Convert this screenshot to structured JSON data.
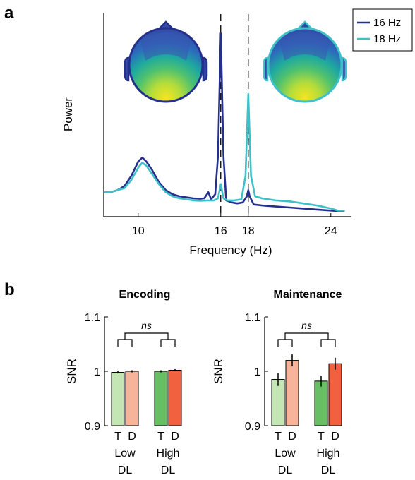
{
  "panel_a_label": "a",
  "panel_b_label": "b",
  "chart_data": [
    {
      "type": "line",
      "xlabel": "Frequency (Hz)",
      "ylabel": "Power",
      "x_ticks": [
        10,
        16,
        18,
        24
      ],
      "xlim": [
        7.5,
        25.5
      ],
      "ylim": [
        0,
        1
      ],
      "dashed_lines_x": [
        16,
        18
      ],
      "legend_position": "top-right",
      "series": [
        {
          "name": "16 Hz",
          "color": "#25308c",
          "points": [
            [
              7.5,
              0.12
            ],
            [
              8,
              0.12
            ],
            [
              8.5,
              0.13
            ],
            [
              9,
              0.15
            ],
            [
              9.5,
              0.2
            ],
            [
              10,
              0.27
            ],
            [
              10.3,
              0.29
            ],
            [
              10.6,
              0.27
            ],
            [
              11,
              0.23
            ],
            [
              11.5,
              0.17
            ],
            [
              12,
              0.13
            ],
            [
              12.5,
              0.11
            ],
            [
              13,
              0.1
            ],
            [
              13.5,
              0.095
            ],
            [
              14,
              0.09
            ],
            [
              14.5,
              0.088
            ],
            [
              14.8,
              0.09
            ],
            [
              15.1,
              0.12
            ],
            [
              15.3,
              0.085
            ],
            [
              15.6,
              0.11
            ],
            [
              15.8,
              0.3
            ],
            [
              16,
              0.9
            ],
            [
              16.2,
              0.3
            ],
            [
              16.4,
              0.08
            ],
            [
              16.8,
              0.07
            ],
            [
              17.2,
              0.065
            ],
            [
              17.6,
              0.07
            ],
            [
              17.9,
              0.1
            ],
            [
              18,
              0.13
            ],
            [
              18.1,
              0.1
            ],
            [
              18.4,
              0.06
            ],
            [
              19,
              0.055
            ],
            [
              20,
              0.05
            ],
            [
              21,
              0.045
            ],
            [
              22,
              0.04
            ],
            [
              23,
              0.035
            ],
            [
              24,
              0.03
            ],
            [
              24.5,
              0.028
            ],
            [
              25,
              0.028
            ]
          ]
        },
        {
          "name": "18 Hz",
          "color": "#3fbfc8",
          "points": [
            [
              7.5,
              0.12
            ],
            [
              8,
              0.12
            ],
            [
              8.5,
              0.13
            ],
            [
              9,
              0.14
            ],
            [
              9.5,
              0.18
            ],
            [
              10,
              0.24
            ],
            [
              10.3,
              0.265
            ],
            [
              10.6,
              0.25
            ],
            [
              11,
              0.21
            ],
            [
              11.5,
              0.16
            ],
            [
              12,
              0.12
            ],
            [
              12.5,
              0.1
            ],
            [
              13,
              0.09
            ],
            [
              13.5,
              0.085
            ],
            [
              14,
              0.08
            ],
            [
              14.5,
              0.078
            ],
            [
              15,
              0.08
            ],
            [
              15.5,
              0.08
            ],
            [
              15.8,
              0.09
            ],
            [
              16,
              0.16
            ],
            [
              16.2,
              0.09
            ],
            [
              16.5,
              0.08
            ],
            [
              17,
              0.08
            ],
            [
              17.5,
              0.085
            ],
            [
              17.8,
              0.2
            ],
            [
              18,
              0.6
            ],
            [
              18.2,
              0.2
            ],
            [
              18.5,
              0.1
            ],
            [
              19,
              0.09
            ],
            [
              20,
              0.08
            ],
            [
              21,
              0.075
            ],
            [
              22,
              0.065
            ],
            [
              23,
              0.055
            ],
            [
              24,
              0.04
            ],
            [
              24.5,
              0.03
            ],
            [
              25,
              0.03
            ]
          ]
        }
      ]
    },
    {
      "type": "bar",
      "title": "Encoding",
      "ylabel": "SNR",
      "ylim": [
        0.9,
        1.1
      ],
      "y_ticks": [
        "0.9",
        "1",
        "1.1"
      ],
      "bar_labels": [
        "T",
        "D",
        "T",
        "D"
      ],
      "group_labels": [
        [
          "Low",
          "DL"
        ],
        [
          "High",
          "DL"
        ]
      ],
      "significance": "ns",
      "values": [
        0.998,
        1.0,
        1.0,
        1.002
      ],
      "errors": [
        0.002,
        0.002,
        0.002,
        0.002
      ],
      "colors": [
        "#c4e6b4",
        "#f7b49a",
        "#66bf63",
        "#f1603f"
      ]
    },
    {
      "type": "bar",
      "title": "Maintenance",
      "ylabel": "SNR",
      "ylim": [
        0.9,
        1.1
      ],
      "y_ticks": [
        "0.9",
        "1",
        "1.1"
      ],
      "bar_labels": [
        "T",
        "D",
        "T",
        "D"
      ],
      "group_labels": [
        [
          "Low",
          "DL"
        ],
        [
          "High",
          "DL"
        ]
      ],
      "significance": "ns",
      "values": [
        0.985,
        1.02,
        0.982,
        1.014
      ],
      "errors": [
        0.012,
        0.011,
        0.01,
        0.011
      ],
      "colors": [
        "#c4e6b4",
        "#f7b49a",
        "#66bf63",
        "#f1603f"
      ]
    }
  ]
}
